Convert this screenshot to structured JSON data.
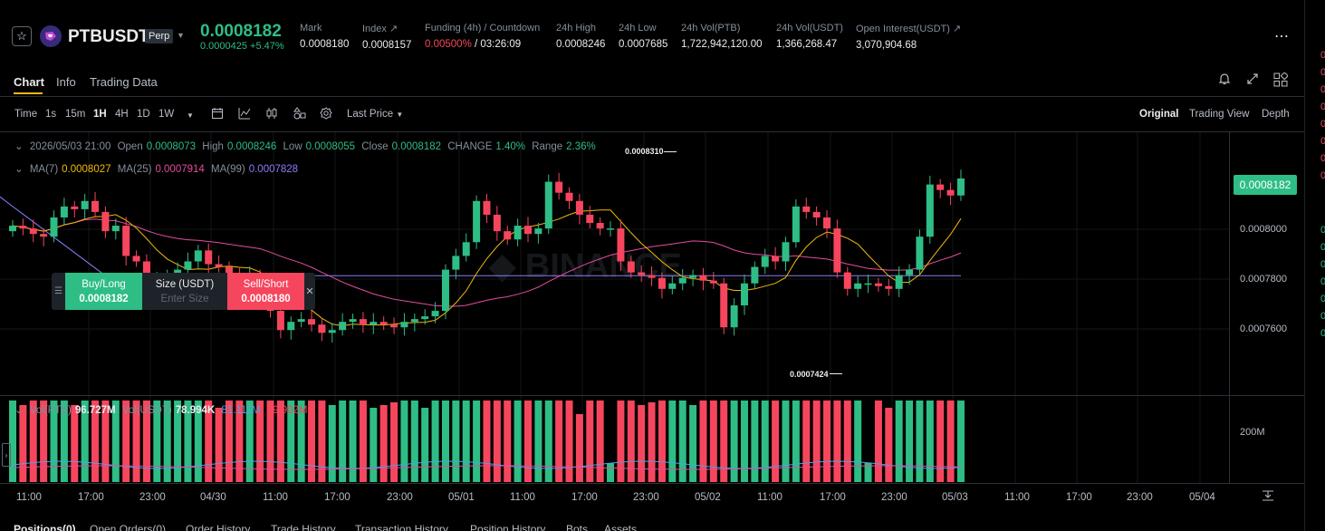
{
  "header": {
    "symbol": "PTBUSDT",
    "perp_badge": "Perp",
    "last_price": "0.0008182",
    "change": "0.0000425 +5.47%",
    "stats": [
      {
        "label": "Mark",
        "value": "0.0008180"
      },
      {
        "label": "Index ↗",
        "value": "0.0008157"
      },
      {
        "label": "Funding (4h) / Countdown",
        "value_funding": "0.00500%",
        "value_countdown": "/ 03:26:09"
      },
      {
        "label": "24h High",
        "value": "0.0008246"
      },
      {
        "label": "24h Low",
        "value": "0.0007685"
      },
      {
        "label": "24h Vol(PTB)",
        "value": "1,722,942,120.00"
      },
      {
        "label": "24h Vol(USDT)",
        "value": "1,366,268.47"
      },
      {
        "label": "Open Interest(USDT) ↗",
        "value": "3,070,904.68"
      }
    ]
  },
  "tabs": [
    "Chart",
    "Info",
    "Trading Data"
  ],
  "toolbar": {
    "intervals": [
      "Time",
      "1s",
      "15m",
      "1H",
      "4H",
      "1D",
      "1W"
    ],
    "active_interval": "1H",
    "price_type": "Last Price",
    "views": [
      "Original",
      "Trading View",
      "Depth"
    ],
    "active_view": "Original"
  },
  "ohlc": {
    "date": "2026/05/03 21:00",
    "open_label": "Open",
    "open": "0.0008073",
    "high_label": "High",
    "high": "0.0008246",
    "low_label": "Low",
    "low": "0.0008055",
    "close_label": "Close",
    "close": "0.0008182",
    "change_label": "CHANGE",
    "change": "1.40%",
    "range_label": "Range",
    "range": "2.36%"
  },
  "ma": {
    "ma7_label": "MA(7)",
    "ma7": "0.0008027",
    "ma25_label": "MA(25)",
    "ma25": "0.0007914",
    "ma99_label": "MA(99)",
    "ma99": "0.0007828"
  },
  "quick_trade": {
    "buy_label": "Buy/Long",
    "buy_price": "0.0008182",
    "size_label": "Size (USDT)",
    "size_placeholder": "Enter Size",
    "sell_label": "Sell/Short",
    "sell_price": "0.0008180"
  },
  "price_axis": [
    "0.0008000",
    "0.0007800",
    "0.0007600"
  ],
  "current_price_tag": "0.0008182",
  "annotations": {
    "high": "0.0008310",
    "low": "0.0007424"
  },
  "volume": {
    "label": "Vol(PTB)",
    "ptb": "96.727M",
    "usdt_label": "Vol(USDT)",
    "usdt": "78.994K",
    "ma1": "81.111M",
    "ma2": "69.902M",
    "axis": "200M"
  },
  "time_axis": [
    "11:00",
    "17:00",
    "23:00",
    "04/30",
    "11:00",
    "17:00",
    "23:00",
    "05/01",
    "11:00",
    "17:00",
    "23:00",
    "05/02",
    "11:00",
    "17:00",
    "23:00",
    "05/03",
    "11:00",
    "17:00",
    "23:00",
    "05/04"
  ],
  "bottom_tabs": [
    "Positions(0)",
    "Open Orders(0)",
    "Order History",
    "Trade History",
    "Transaction History",
    "Position History",
    "Bots",
    "Assets"
  ],
  "colors": {
    "up": "#2ebd85",
    "down": "#f6465d",
    "ma7": "#f0b90b",
    "ma25": "#e24da0",
    "ma99": "#8b7cf6"
  },
  "chart_data": {
    "type": "candlestick",
    "interval": "1H",
    "y_range": [
      0.00074,
      0.000835
    ],
    "candles_close": [
      0.000801,
      0.0008,
      0.000798,
      0.000797,
      0.000804,
      0.000808,
      0.000807,
      0.00081,
      0.000806,
      0.000799,
      0.000801,
      0.00079,
      0.000788,
      0.00078,
      0.000781,
      0.000783,
      0.000785,
      0.000788,
      0.000792,
      0.000787,
      0.000786,
      0.000783,
      0.00078,
      0.000783,
      0.000778,
      0.00077,
      0.000763,
      0.000766,
      0.000767,
      0.000765,
      0.000762,
      0.000763,
      0.000766,
      0.000767,
      0.000765,
      0.000766,
      0.000765,
      0.000764,
      0.000766,
      0.000767,
      0.000768,
      0.00077,
      0.000785,
      0.00079,
      0.000795,
      0.00081,
      0.000805,
      0.000799,
      0.000796,
      0.000801,
      0.000798,
      0.0008,
      0.000817,
      0.000813,
      0.00081,
      0.000805,
      0.000802,
      0.0008,
      0.0008,
      0.000788,
      0.000784,
      0.000783,
      0.000782,
      0.000778,
      0.00078,
      0.000782,
      0.000783,
      0.000781,
      0.00078,
      0.000764,
      0.000772,
      0.00078,
      0.000786,
      0.00079,
      0.000788,
      0.000795,
      0.000808,
      0.000806,
      0.000804,
      0.0008,
      0.000784,
      0.000778,
      0.00078,
      0.00078,
      0.000779,
      0.000778,
      0.000783,
      0.000785,
      0.000797,
      0.000816,
      0.000814,
      0.000812,
      0.0008182
    ]
  }
}
